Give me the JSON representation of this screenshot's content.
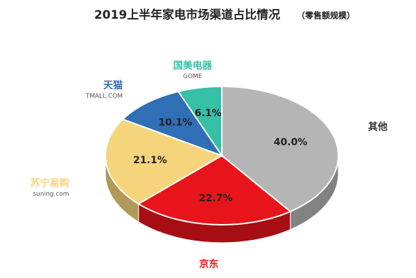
{
  "chart_data": {
    "type": "pie",
    "title": "2019上半年家电市场渠道占比情况",
    "subtitle": "（零售额规模）",
    "categories": [
      "其他",
      "京东",
      "苏宁易购",
      "天猫",
      "国美电器"
    ],
    "sublabels": [
      null,
      null,
      "suning.com",
      "TMALL.COM",
      "GOME"
    ],
    "values": [
      40,
      22.7,
      21.1,
      10.1,
      6.1
    ],
    "value_labels": [
      "40.0%",
      "22.7%",
      "21.1%",
      "10.1%",
      "6.1%"
    ],
    "colors": [
      "#b5b5b5",
      "#e8141b",
      "#f6d47c",
      "#2f6fb6",
      "#36c0a6"
    ]
  }
}
